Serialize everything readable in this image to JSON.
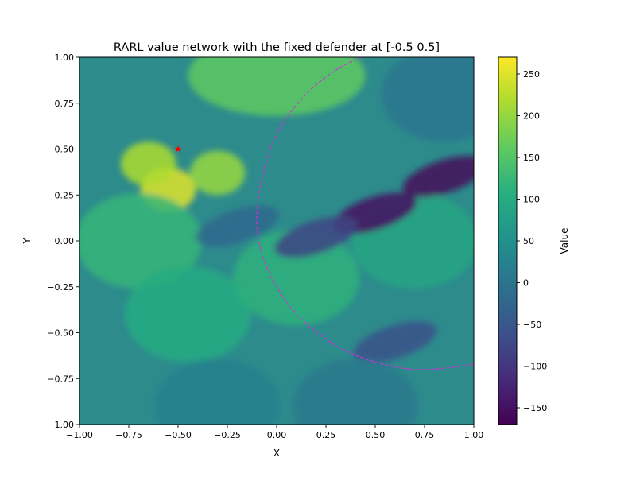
{
  "chart_data": {
    "type": "heatmap",
    "subtype": "filled-contour",
    "title": "RARL value network with the fixed defender at [-0.5  0.5]",
    "xlabel": "X",
    "ylabel": "Y",
    "xlim": [
      -1.0,
      1.0
    ],
    "ylim": [
      -1.0,
      1.0
    ],
    "x_ticks": [
      "−1.00",
      "−0.75",
      "−0.50",
      "−0.25",
      "0.00",
      "0.25",
      "0.50",
      "0.75",
      "1.00"
    ],
    "y_ticks": [
      "−1.00",
      "−0.75",
      "−0.50",
      "−0.25",
      "0.00",
      "0.25",
      "0.50",
      "0.75",
      "1.00"
    ],
    "x_tick_values": [
      -1.0,
      -0.75,
      -0.5,
      -0.25,
      0.0,
      0.25,
      0.5,
      0.75,
      1.0
    ],
    "y_tick_values": [
      -1.0,
      -0.75,
      -0.5,
      -0.25,
      0.0,
      0.25,
      0.5,
      0.75,
      1.0
    ],
    "colormap": "viridis",
    "colorbar": {
      "label": "Value",
      "range": [
        -170,
        270
      ],
      "ticks": [
        "−150",
        "−100",
        "−50",
        "0",
        "50",
        "100",
        "150",
        "200",
        "250"
      ],
      "tick_values": [
        -150,
        -100,
        -50,
        0,
        50,
        100,
        150,
        200,
        250
      ]
    },
    "value_features": [
      {
        "kind": "peak",
        "x": -0.55,
        "y": 0.28,
        "value": 250
      },
      {
        "kind": "peak",
        "x": -0.65,
        "y": 0.42,
        "value": 215
      },
      {
        "kind": "peak",
        "x": -0.3,
        "y": 0.37,
        "value": 200
      },
      {
        "kind": "ridge",
        "x": 0.0,
        "y": 0.9,
        "value": 160
      },
      {
        "kind": "region",
        "x": -0.7,
        "y": 0.0,
        "value": 120
      },
      {
        "kind": "region",
        "x": -0.45,
        "y": -0.4,
        "value": 100
      },
      {
        "kind": "region",
        "x": 0.1,
        "y": -0.2,
        "value": 110
      },
      {
        "kind": "region",
        "x": 0.7,
        "y": 0.0,
        "value": 90
      },
      {
        "kind": "trough",
        "x": 0.5,
        "y": 0.15,
        "value": -150
      },
      {
        "kind": "trough",
        "x": 0.85,
        "y": 0.35,
        "value": -160
      },
      {
        "kind": "trough",
        "x": 0.2,
        "y": 0.02,
        "value": -80
      },
      {
        "kind": "trough",
        "x": -0.2,
        "y": 0.08,
        "value": -20
      },
      {
        "kind": "trough",
        "x": 0.6,
        "y": -0.55,
        "value": -60
      },
      {
        "kind": "region",
        "x": 0.85,
        "y": 0.8,
        "value": 0
      },
      {
        "kind": "region",
        "x": -0.3,
        "y": -0.9,
        "value": 20
      },
      {
        "kind": "region",
        "x": 0.4,
        "y": -0.9,
        "value": 10
      }
    ],
    "marker": {
      "x": -0.5,
      "y": 0.5,
      "symbol": "star",
      "color": "#ff0000"
    },
    "boundary_curve": {
      "style": "dashed",
      "color": "#d62fd6",
      "points": [
        [
          0.43,
          1.0
        ],
        [
          0.3,
          0.93
        ],
        [
          0.15,
          0.8
        ],
        [
          0.02,
          0.62
        ],
        [
          -0.06,
          0.4
        ],
        [
          -0.1,
          0.15
        ],
        [
          -0.08,
          -0.05
        ],
        [
          0.0,
          -0.25
        ],
        [
          0.12,
          -0.42
        ],
        [
          0.3,
          -0.57
        ],
        [
          0.5,
          -0.66
        ],
        [
          0.7,
          -0.7
        ],
        [
          0.88,
          -0.69
        ],
        [
          1.0,
          -0.67
        ]
      ]
    }
  }
}
